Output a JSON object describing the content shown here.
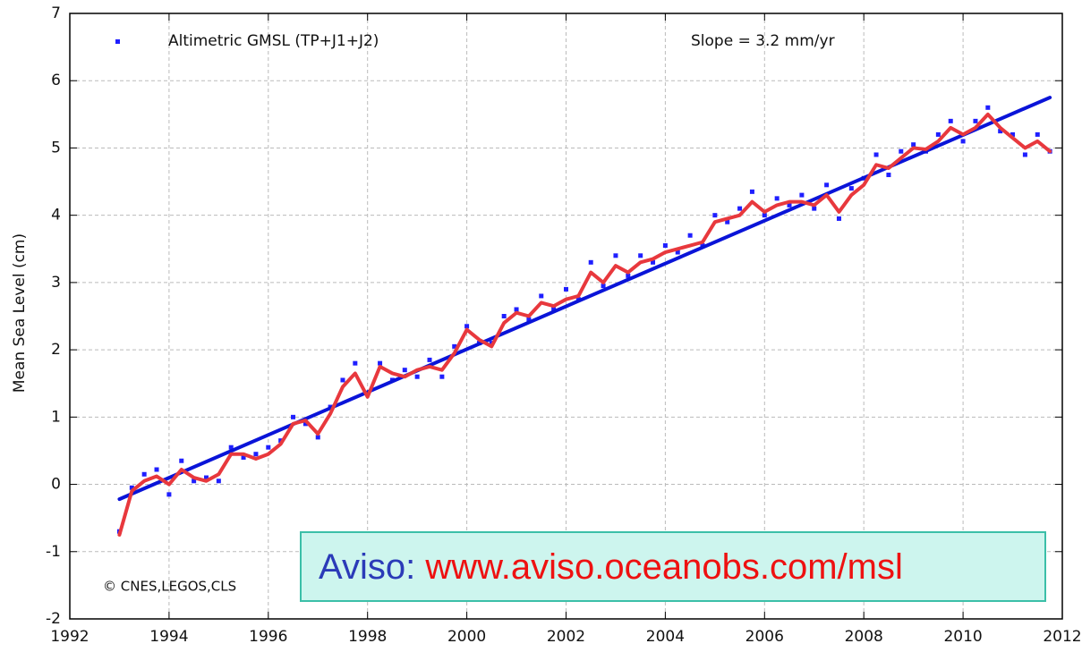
{
  "chart_data": {
    "type": "scatter",
    "ylabel": "Mean Sea Level (cm)",
    "xlim": [
      1992,
      2012
    ],
    "xticks": [
      1992,
      1994,
      1996,
      1998,
      2000,
      2002,
      2004,
      2006,
      2008,
      2010,
      2012
    ],
    "ylim": [
      -2,
      7
    ],
    "yticks": [
      -2,
      -1,
      0,
      1,
      2,
      3,
      4,
      5,
      6,
      7
    ],
    "grid": true,
    "x": [
      1993.0,
      1993.25,
      1993.5,
      1993.75,
      1994.0,
      1994.25,
      1994.5,
      1994.75,
      1995.0,
      1995.25,
      1995.5,
      1995.75,
      1996.0,
      1996.25,
      1996.5,
      1996.75,
      1997.0,
      1997.25,
      1997.5,
      1997.75,
      1998.0,
      1998.25,
      1998.5,
      1998.75,
      1999.0,
      1999.25,
      1999.5,
      1999.75,
      2000.0,
      2000.25,
      2000.5,
      2000.75,
      2001.0,
      2001.25,
      2001.5,
      2001.75,
      2002.0,
      2002.25,
      2002.5,
      2002.75,
      2003.0,
      2003.25,
      2003.5,
      2003.75,
      2004.0,
      2004.25,
      2004.5,
      2004.75,
      2005.0,
      2005.25,
      2005.5,
      2005.75,
      2006.0,
      2006.25,
      2006.5,
      2006.75,
      2007.0,
      2007.25,
      2007.5,
      2007.75,
      2008.0,
      2008.25,
      2008.5,
      2008.75,
      2009.0,
      2009.25,
      2009.5,
      2009.75,
      2010.0,
      2010.25,
      2010.5,
      2010.75,
      2011.0,
      2011.25,
      2011.5,
      2011.75
    ],
    "series": [
      {
        "name": "Altimetric GMSL (TP+J1+J2)",
        "color": "#1f1fff",
        "mode": "markers",
        "values": [
          -0.7,
          -0.05,
          0.15,
          0.22,
          -0.15,
          0.35,
          0.05,
          0.1,
          0.05,
          0.55,
          0.4,
          0.45,
          0.55,
          0.65,
          1.0,
          0.9,
          0.7,
          1.15,
          1.55,
          1.8,
          1.35,
          1.8,
          1.55,
          1.7,
          1.6,
          1.85,
          1.6,
          2.05,
          2.35,
          2.1,
          2.1,
          2.5,
          2.6,
          2.45,
          2.8,
          2.6,
          2.9,
          2.75,
          3.3,
          2.95,
          3.4,
          3.1,
          3.4,
          3.3,
          3.55,
          3.45,
          3.7,
          3.55,
          4.0,
          3.9,
          4.1,
          4.35,
          4.0,
          4.25,
          4.15,
          4.3,
          4.1,
          4.45,
          3.95,
          4.4,
          4.55,
          4.9,
          4.6,
          4.95,
          5.05,
          4.95,
          5.2,
          5.4,
          5.1,
          5.4,
          5.6,
          5.25,
          5.2,
          4.9,
          5.2,
          4.95
        ]
      },
      {
        "color": "#0a14d8",
        "mode": "line",
        "x": [
          1993.0,
          2011.75
        ],
        "values": [
          -0.22,
          5.75
        ]
      },
      {
        "color": "#e8383d",
        "mode": "line",
        "values": [
          -0.75,
          -0.1,
          0.05,
          0.12,
          0.0,
          0.22,
          0.1,
          0.05,
          0.15,
          0.45,
          0.45,
          0.38,
          0.45,
          0.6,
          0.9,
          0.95,
          0.75,
          1.05,
          1.45,
          1.65,
          1.3,
          1.75,
          1.65,
          1.6,
          1.7,
          1.75,
          1.7,
          1.95,
          2.3,
          2.15,
          2.05,
          2.4,
          2.55,
          2.5,
          2.7,
          2.65,
          2.75,
          2.8,
          3.15,
          3.0,
          3.25,
          3.15,
          3.3,
          3.35,
          3.45,
          3.5,
          3.55,
          3.6,
          3.9,
          3.95,
          4.0,
          4.2,
          4.05,
          4.15,
          4.2,
          4.2,
          4.15,
          4.3,
          4.05,
          4.3,
          4.45,
          4.75,
          4.7,
          4.85,
          5.0,
          4.98,
          5.1,
          5.3,
          5.2,
          5.3,
          5.5,
          5.3,
          5.15,
          5.0,
          5.1,
          4.95
        ]
      }
    ],
    "annotations": [
      "Slope = 3.2 mm/yr",
      "© CNES,LEGOS,CLS",
      "Aviso:",
      "www.aviso.oceanobs.com/msl"
    ]
  }
}
